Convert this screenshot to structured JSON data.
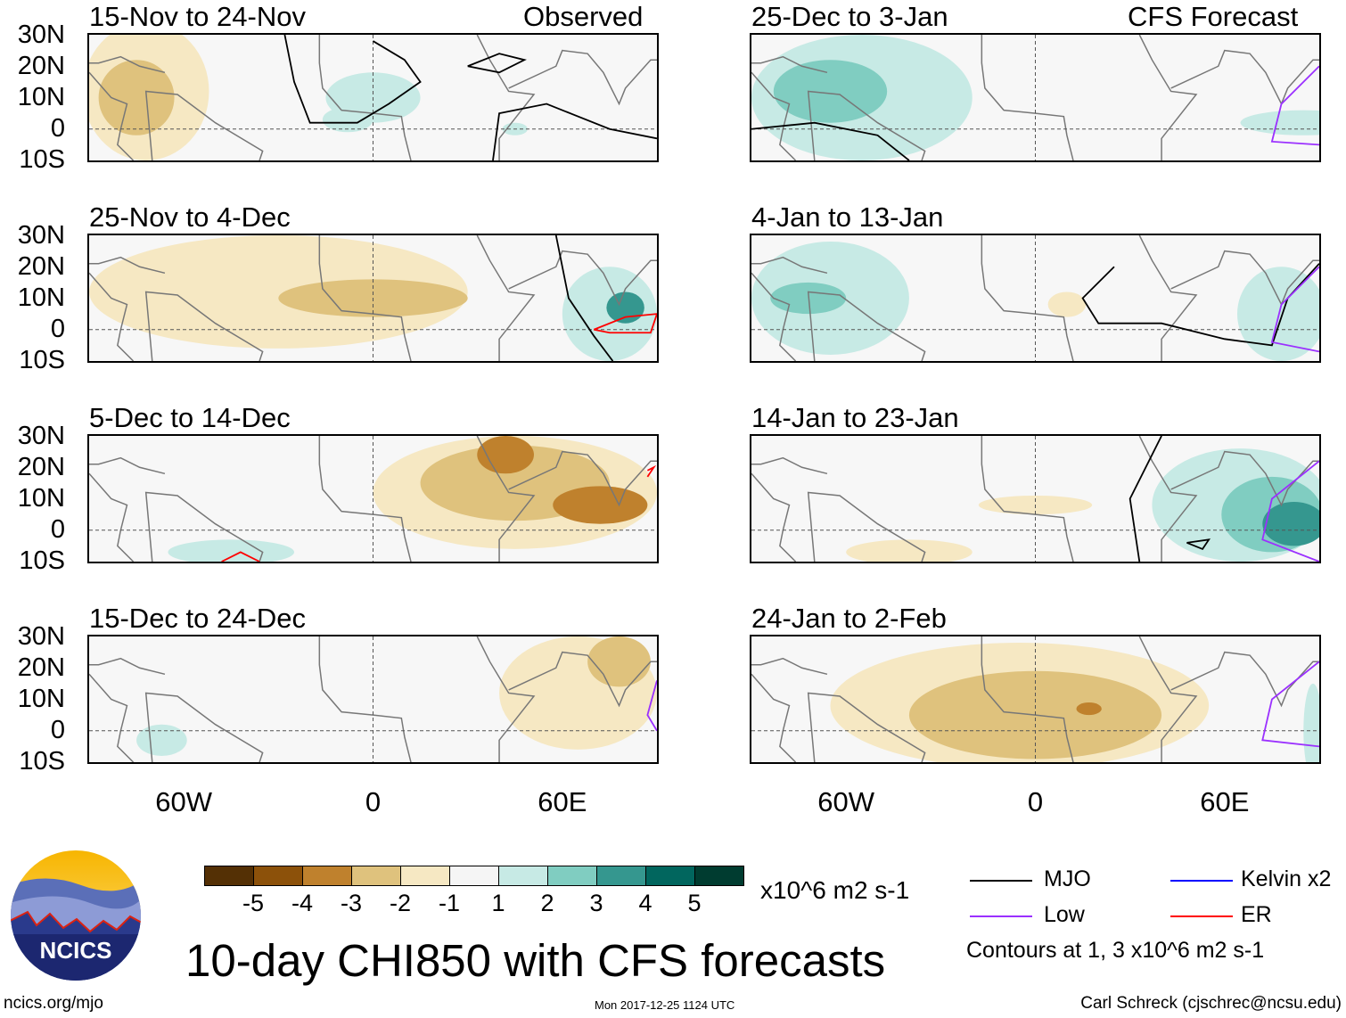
{
  "chart_data": {
    "type": "heatmap",
    "title": "10-day CHI850 with CFS forecasts",
    "units": "x10^6 m2 s-1",
    "lat_ticks": [
      "30N",
      "20N",
      "10N",
      "0",
      "10S"
    ],
    "lon_ticks": [
      "60W",
      "0",
      "60E"
    ],
    "lon_range": [
      -90,
      90
    ],
    "lat_range": [
      -10,
      30
    ],
    "colorbar": {
      "labels": [
        "-5",
        "-4",
        "-3",
        "-2",
        "-1",
        "1",
        "2",
        "3",
        "4",
        "5"
      ],
      "colors": [
        "#543005",
        "#8c510a",
        "#bf812d",
        "#dfc27d",
        "#f6e8c3",
        "#f5f5f5",
        "#c7eae5",
        "#80cdc1",
        "#35978f",
        "#01665e",
        "#003c30"
      ]
    },
    "legend": {
      "mjo": "MJO",
      "low": "Low",
      "kelvin": "Kelvin x2",
      "er": "ER",
      "note": "Contours at 1, 3 x10^6 m2 s-1",
      "colors": {
        "mjo": "#000000",
        "low": "#9b30ff",
        "kelvin": "#0000ff",
        "er": "#ff0000"
      }
    },
    "panels": [
      {
        "title": "15-Nov to 24-Nov",
        "tag": "Observed",
        "blobs": [
          [
            -72,
            12,
            20,
            22,
            -1
          ],
          [
            -75,
            10,
            12,
            12,
            -2
          ],
          [
            0,
            10,
            15,
            8,
            1
          ],
          [
            -8,
            3,
            8,
            4,
            1
          ],
          [
            45,
            0,
            4,
            2,
            1
          ]
        ],
        "contours": [
          {
            "type": "mjo",
            "pts": [
              [
                -28,
                30
              ],
              [
                -25,
                15
              ],
              [
                -20,
                2
              ],
              [
                -5,
                2
              ],
              [
                5,
                8
              ],
              [
                15,
                15
              ],
              [
                10,
                22
              ],
              [
                0,
                28
              ]
            ]
          },
          {
            "type": "mjo",
            "pts": [
              [
                30,
                20
              ],
              [
                40,
                24
              ],
              [
                48,
                22
              ],
              [
                40,
                18
              ],
              [
                30,
                20
              ]
            ]
          },
          {
            "type": "mjo",
            "pts": [
              [
                38,
                -10
              ],
              [
                40,
                5
              ],
              [
                55,
                8
              ],
              [
                75,
                0
              ],
              [
                90,
                -3
              ]
            ]
          }
        ]
      },
      {
        "title": "25-Dec to 3-Jan",
        "tag": "CFS Forecast",
        "blobs": [
          [
            -55,
            10,
            35,
            20,
            1
          ],
          [
            -65,
            12,
            18,
            10,
            2
          ],
          [
            85,
            2,
            20,
            4,
            1
          ]
        ],
        "contours": [
          {
            "type": "mjo",
            "pts": [
              [
                -90,
                0
              ],
              [
                -70,
                2
              ],
              [
                -50,
                -2
              ],
              [
                -40,
                -10
              ]
            ]
          },
          {
            "type": "low",
            "pts": [
              [
                90,
                20
              ],
              [
                78,
                8
              ],
              [
                75,
                -4
              ],
              [
                90,
                -5
              ]
            ]
          }
        ]
      },
      {
        "title": "25-Nov to 4-Dec",
        "tag": "",
        "blobs": [
          [
            -30,
            12,
            60,
            18,
            -1
          ],
          [
            0,
            10,
            30,
            6,
            -2
          ],
          [
            75,
            5,
            15,
            15,
            1
          ],
          [
            80,
            7,
            6,
            5,
            3
          ]
        ],
        "contours": [
          {
            "type": "mjo",
            "pts": [
              [
                58,
                30
              ],
              [
                62,
                10
              ],
              [
                70,
                -2
              ],
              [
                76,
                -10
              ]
            ]
          },
          {
            "type": "er",
            "pts": [
              [
                70,
                0
              ],
              [
                80,
                4
              ],
              [
                90,
                5
              ],
              [
                88,
                -1
              ],
              [
                75,
                -1
              ],
              [
                70,
                0
              ]
            ]
          }
        ]
      },
      {
        "title": "4-Jan to 13-Jan",
        "tag": "",
        "blobs": [
          [
            -65,
            10,
            25,
            18,
            1
          ],
          [
            -72,
            10,
            12,
            5,
            2
          ],
          [
            78,
            5,
            14,
            15,
            1
          ],
          [
            10,
            8,
            6,
            4,
            -1
          ]
        ],
        "contours": [
          {
            "type": "mjo",
            "pts": [
              [
                25,
                20
              ],
              [
                15,
                10
              ],
              [
                20,
                2
              ],
              [
                40,
                2
              ],
              [
                60,
                -3
              ],
              [
                75,
                -5
              ],
              [
                80,
                10
              ],
              [
                90,
                21
              ]
            ]
          },
          {
            "type": "low",
            "pts": [
              [
                90,
                20
              ],
              [
                78,
                8
              ],
              [
                75,
                -4
              ],
              [
                90,
                -7
              ]
            ]
          }
        ]
      },
      {
        "title": "5-Dec to 14-Dec",
        "tag": "",
        "blobs": [
          [
            45,
            12,
            45,
            18,
            -1
          ],
          [
            45,
            15,
            30,
            12,
            -2
          ],
          [
            42,
            24,
            9,
            6,
            -3
          ],
          [
            72,
            8,
            15,
            6,
            -3
          ],
          [
            -45,
            -7,
            20,
            4,
            1
          ]
        ],
        "contours": [
          {
            "type": "er",
            "pts": [
              [
                -48,
                -10
              ],
              [
                -42,
                -7
              ],
              [
                -36,
                -10
              ]
            ]
          },
          {
            "type": "er",
            "pts": [
              [
                87,
                17
              ],
              [
                89,
                20
              ],
              [
                87,
                19
              ]
            ]
          }
        ]
      },
      {
        "title": "14-Jan to 23-Jan",
        "tag": "",
        "blobs": [
          [
            65,
            8,
            28,
            18,
            1
          ],
          [
            75,
            5,
            16,
            12,
            2
          ],
          [
            82,
            2,
            10,
            7,
            3
          ],
          [
            0,
            8,
            18,
            3,
            -1
          ],
          [
            -40,
            -7,
            20,
            4,
            -1
          ]
        ],
        "contours": [
          {
            "type": "mjo",
            "pts": [
              [
                40,
                30
              ],
              [
                30,
                10
              ],
              [
                33,
                -10
              ]
            ]
          },
          {
            "type": "mjo",
            "pts": [
              [
                48,
                -4
              ],
              [
                55,
                -3
              ],
              [
                53,
                -6
              ],
              [
                48,
                -4
              ]
            ]
          },
          {
            "type": "low",
            "pts": [
              [
                90,
                22
              ],
              [
                75,
                10
              ],
              [
                72,
                -3
              ],
              [
                90,
                -10
              ]
            ]
          }
        ]
      },
      {
        "title": "15-Dec to 24-Dec",
        "tag": "",
        "blobs": [
          [
            65,
            12,
            25,
            18,
            -1
          ],
          [
            78,
            22,
            10,
            8,
            -2
          ],
          [
            -67,
            -3,
            8,
            5,
            1
          ]
        ],
        "contours": [
          {
            "type": "low",
            "pts": [
              [
                90,
                16
              ],
              [
                87,
                5
              ],
              [
                90,
                0
              ]
            ]
          }
        ]
      },
      {
        "title": "24-Jan to 2-Feb",
        "tag": "",
        "blobs": [
          [
            -5,
            8,
            60,
            20,
            -1
          ],
          [
            0,
            5,
            40,
            14,
            -2
          ],
          [
            17,
            7,
            4,
            2,
            -3
          ],
          [
            88,
            0,
            3,
            15,
            1
          ]
        ],
        "contours": [
          {
            "type": "low",
            "pts": [
              [
                90,
                22
              ],
              [
                75,
                10
              ],
              [
                72,
                -3
              ],
              [
                90,
                -5
              ]
            ]
          }
        ]
      }
    ]
  },
  "logo": {
    "text": "NCICS"
  },
  "footer": {
    "left": "ncics.org/mjo",
    "center": "Mon 2017-12-25 1124 UTC",
    "right": "Carl Schreck (cjschrec@ncsu.edu)"
  }
}
